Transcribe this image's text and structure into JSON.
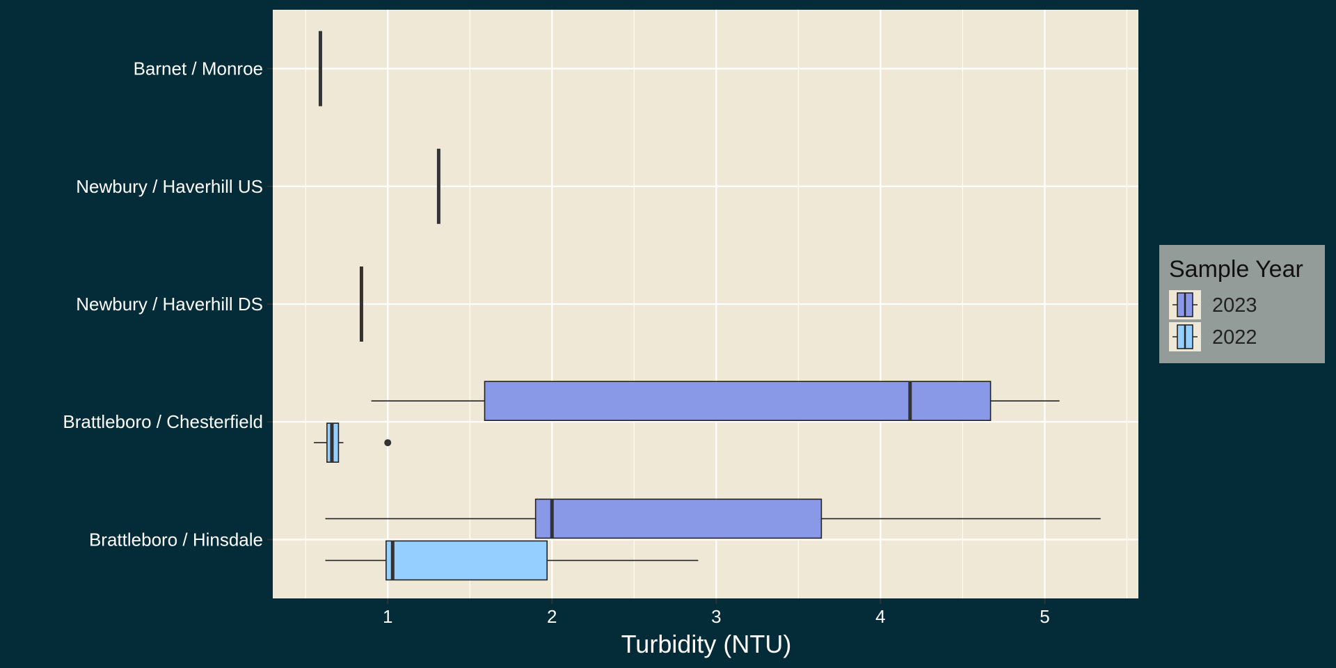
{
  "colors": {
    "page_background": "#032b38",
    "panel_background": "#efe8d6",
    "grid": "#ffffff",
    "legend_background": "#939c98",
    "series_2023": "#8a98e8",
    "series_2022": "#94cfff",
    "outline": "#222222"
  },
  "chart_data": {
    "type": "boxplot",
    "orientation": "horizontal",
    "xlabel": "Turbidity (NTU)",
    "xlim": [
      0.3,
      5.57
    ],
    "xticks": [
      1,
      2,
      3,
      4,
      5
    ],
    "grid": true,
    "categories": [
      "Barnet / Monroe",
      "Newbury / Haverhill US",
      "Newbury / Haverhill DS",
      "Brattleboro / Chesterfield",
      "Brattleboro / Hinsdale"
    ],
    "legend": {
      "title": "Sample Year",
      "position": "right",
      "entries": [
        "2023",
        "2022"
      ]
    },
    "series": [
      {
        "name": "2023",
        "boxes": [
          {
            "category": "Barnet / Monroe",
            "min": 0.59,
            "q1": 0.59,
            "median": 0.59,
            "q3": 0.59,
            "max": 0.59,
            "outliers": []
          },
          {
            "category": "Newbury / Haverhill US",
            "min": 1.31,
            "q1": 1.31,
            "median": 1.31,
            "q3": 1.31,
            "max": 1.31,
            "outliers": []
          },
          {
            "category": "Newbury / Haverhill DS",
            "min": 0.84,
            "q1": 0.84,
            "median": 0.84,
            "q3": 0.84,
            "max": 0.84,
            "outliers": []
          },
          {
            "category": "Brattleboro / Chesterfield",
            "min": 0.9,
            "q1": 1.59,
            "median": 4.18,
            "q3": 4.67,
            "max": 5.09,
            "outliers": []
          },
          {
            "category": "Brattleboro / Hinsdale",
            "min": 0.62,
            "q1": 1.9,
            "median": 2.0,
            "q3": 3.64,
            "max": 5.34,
            "outliers": []
          }
        ]
      },
      {
        "name": "2022",
        "boxes": [
          {
            "category": "Brattleboro / Chesterfield",
            "min": 0.55,
            "q1": 0.63,
            "median": 0.66,
            "q3": 0.7,
            "max": 0.73,
            "outliers": [
              1.0
            ]
          },
          {
            "category": "Brattleboro / Hinsdale",
            "min": 0.62,
            "q1": 0.99,
            "median": 1.03,
            "q3": 1.97,
            "max": 2.89,
            "outliers": []
          }
        ]
      }
    ]
  }
}
